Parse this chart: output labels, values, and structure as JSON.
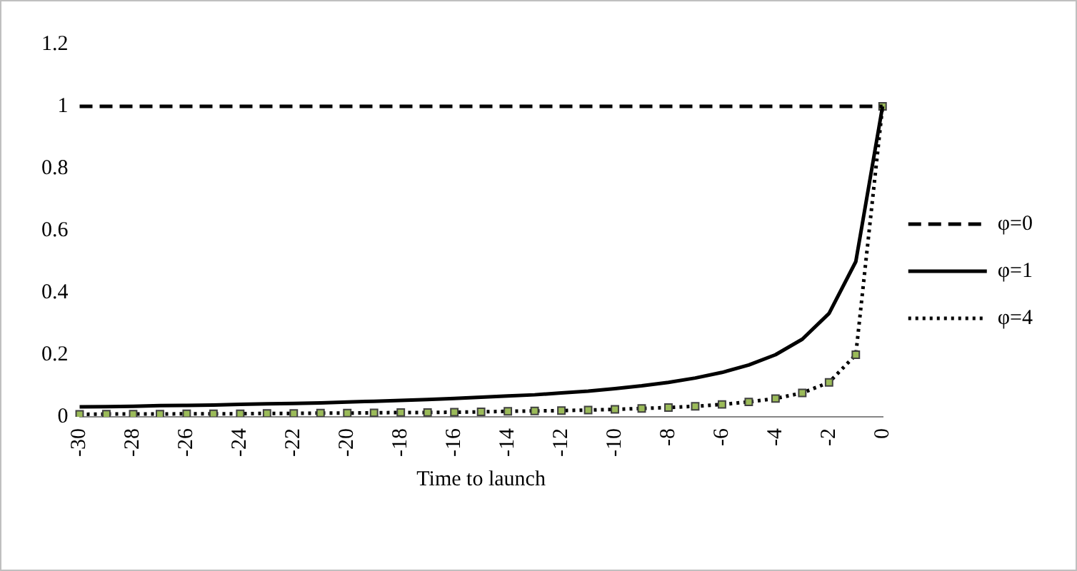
{
  "chart_data": {
    "type": "line",
    "xlabel": "Time to launch",
    "categories": [
      "-30",
      null,
      "-28",
      null,
      "-26",
      null,
      "-24",
      null,
      "-22",
      null,
      "-20",
      null,
      "-18",
      null,
      "-16",
      null,
      "-14",
      null,
      "-12",
      null,
      "-10",
      null,
      "-8",
      null,
      "-6",
      null,
      "-4",
      null,
      "-2",
      null,
      "0"
    ],
    "series": [
      {
        "name": "φ=0",
        "color": "#000000",
        "line_style": "dashed",
        "marker": "none",
        "values": [
          1,
          1,
          1,
          1,
          1,
          1,
          1,
          1,
          1,
          1,
          1,
          1,
          1,
          1,
          1,
          1,
          1,
          1,
          1,
          1,
          1,
          1,
          1,
          1,
          1,
          1,
          1,
          1,
          1,
          1,
          1
        ]
      },
      {
        "name": "φ=1",
        "color": "#000000",
        "line_style": "solid",
        "marker": "none",
        "values": [
          0.032,
          0.033,
          0.034,
          0.036,
          0.037,
          0.038,
          0.04,
          0.042,
          0.043,
          0.045,
          0.048,
          0.05,
          0.053,
          0.056,
          0.059,
          0.063,
          0.067,
          0.071,
          0.077,
          0.083,
          0.091,
          0.1,
          0.111,
          0.125,
          0.143,
          0.167,
          0.2,
          0.25,
          0.333,
          0.5,
          1
        ]
      },
      {
        "name": "φ=4",
        "color": "#000000",
        "line_style": "dotted",
        "marker": "square",
        "values": [
          0.008,
          0.009,
          0.009,
          0.009,
          0.01,
          0.01,
          0.01,
          0.011,
          0.011,
          0.012,
          0.012,
          0.013,
          0.014,
          0.014,
          0.015,
          0.016,
          0.018,
          0.019,
          0.02,
          0.022,
          0.024,
          0.027,
          0.03,
          0.034,
          0.04,
          0.048,
          0.059,
          0.077,
          0.111,
          0.2,
          1
        ]
      }
    ],
    "ylim": [
      0,
      1.2
    ],
    "yticks": [
      0,
      0.2,
      0.4,
      0.6,
      0.8,
      1,
      1.2
    ],
    "grid": false,
    "legend": "right"
  }
}
